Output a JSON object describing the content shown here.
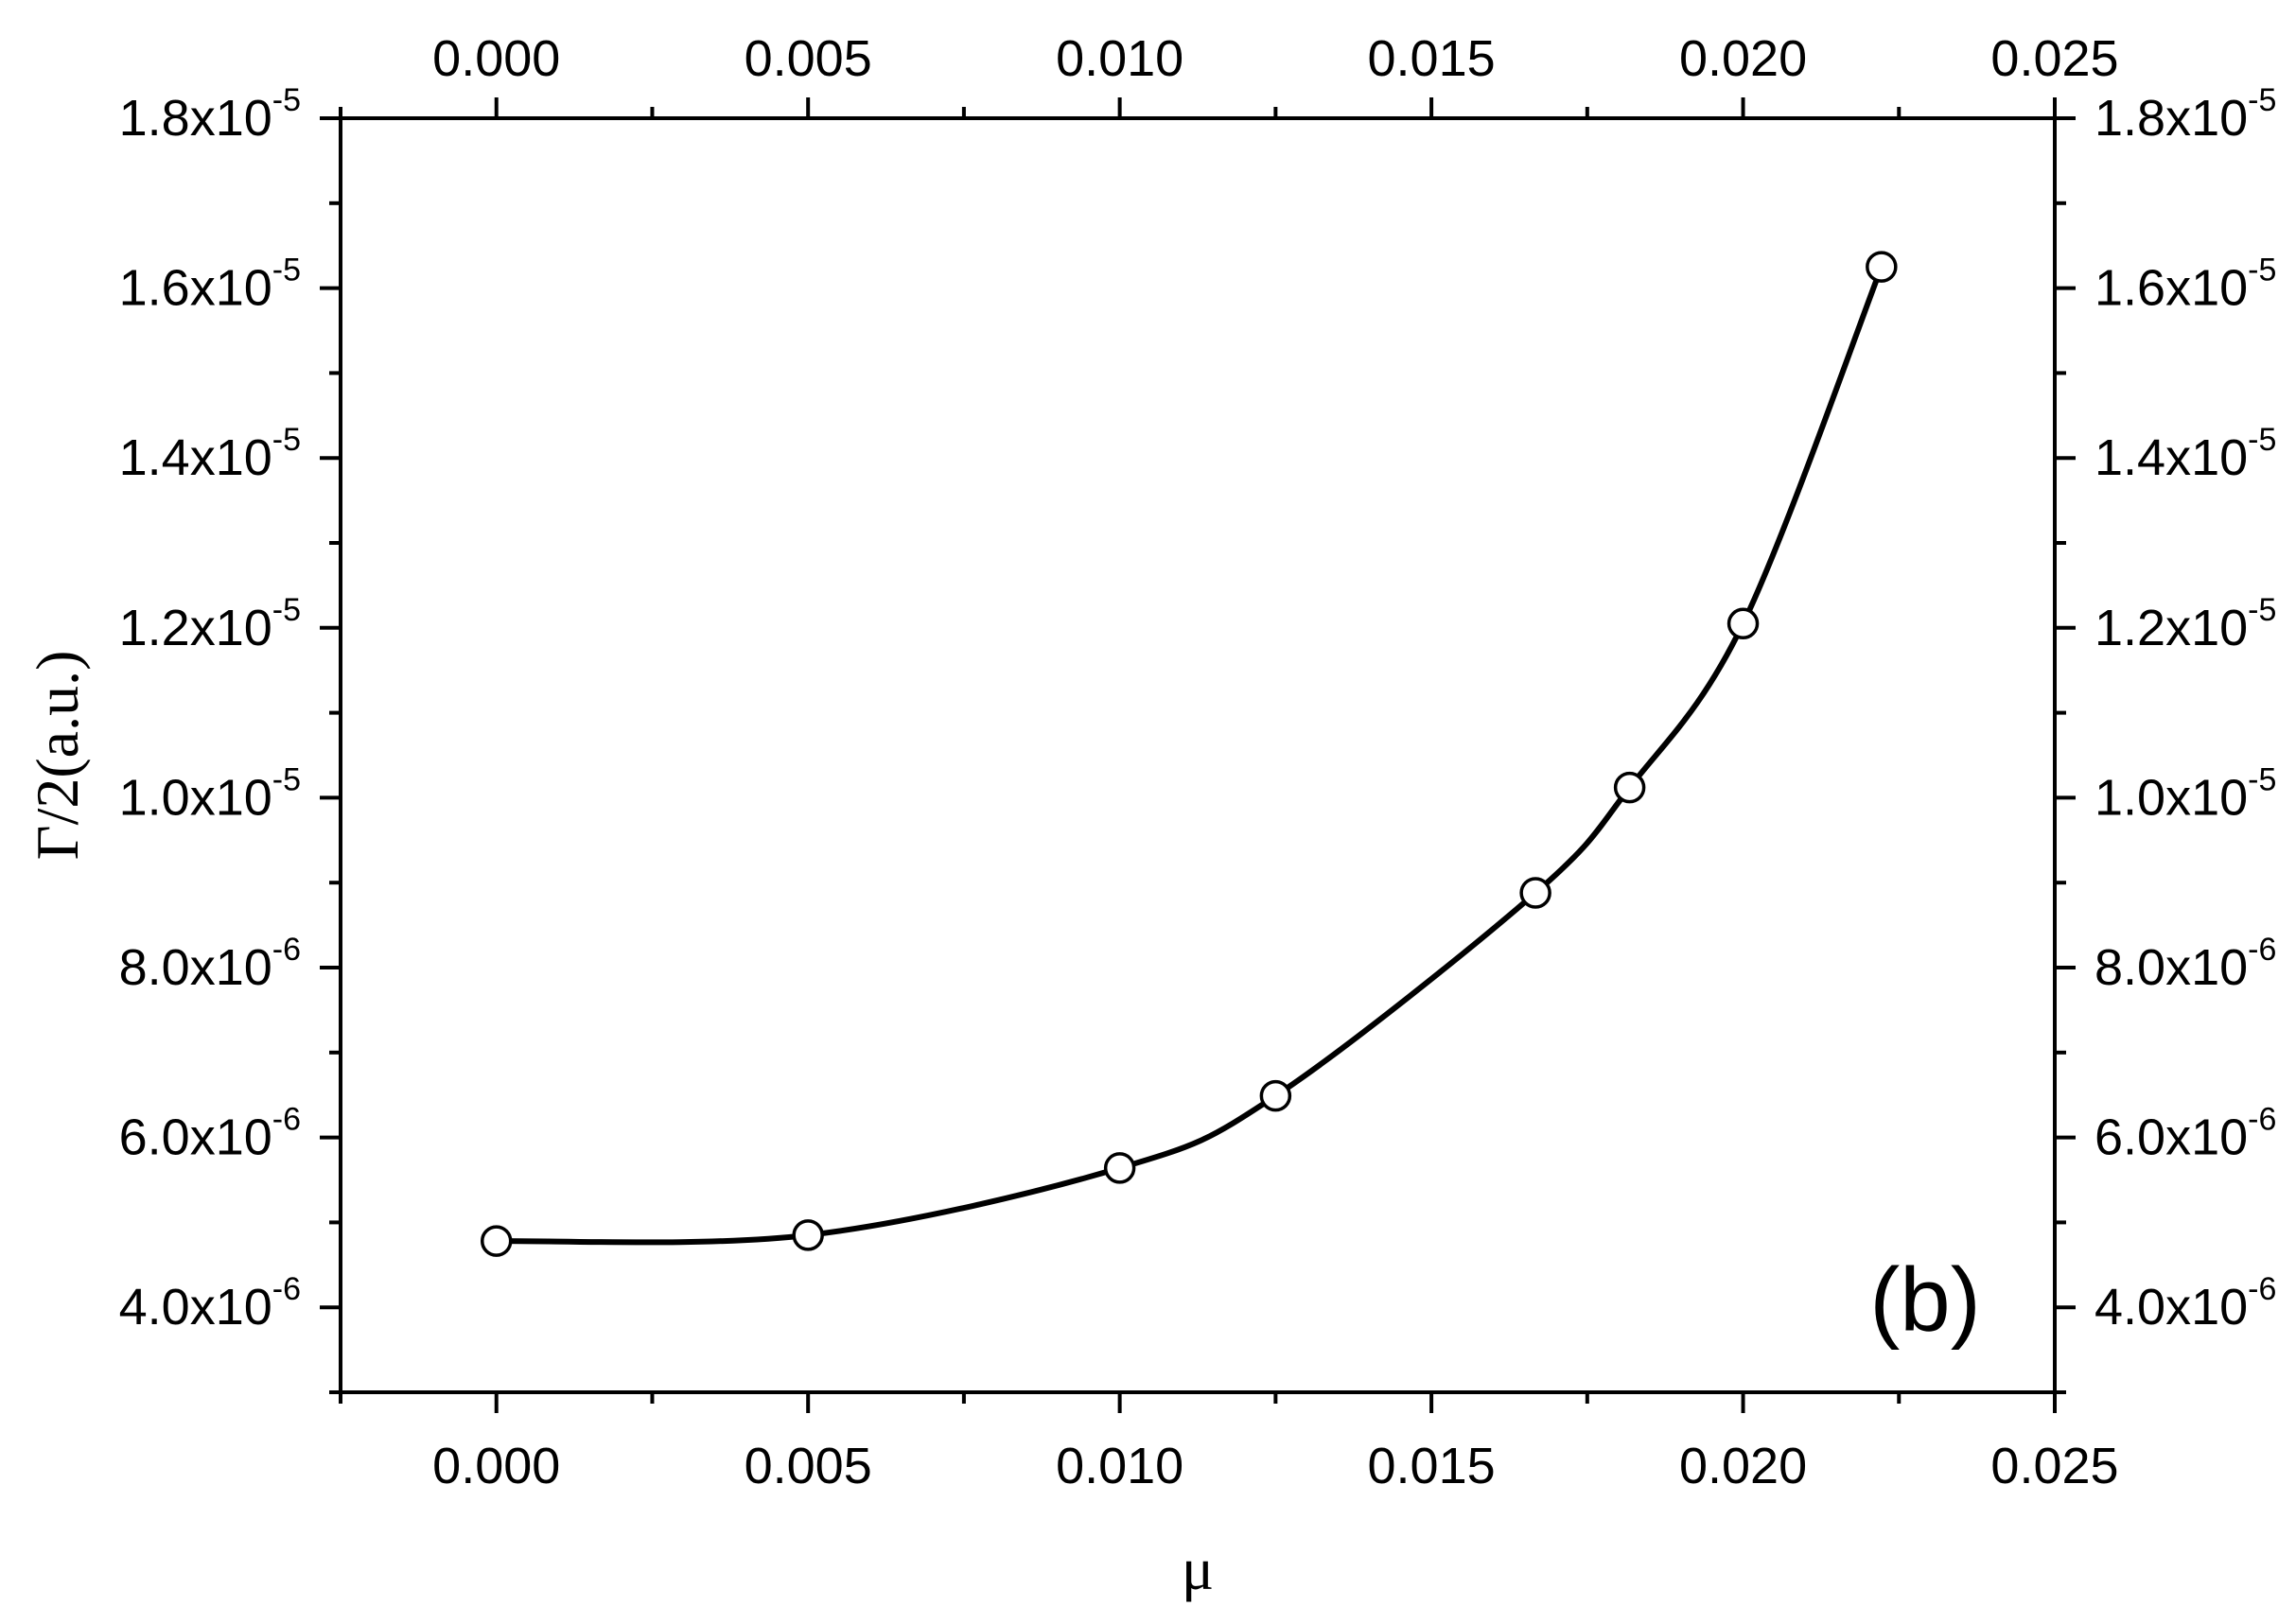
{
  "chart_data": {
    "type": "scatter",
    "panel_label": "(b)",
    "xlabel": "μ",
    "ylabel": "Γ/2(a.u.)",
    "xlim": [
      -0.0025,
      0.025
    ],
    "ylim": [
      3e-06,
      1.8e-05
    ],
    "x_ticks": [
      {
        "value": 0.0,
        "label": "0.000"
      },
      {
        "value": 0.005,
        "label": "0.005"
      },
      {
        "value": 0.01,
        "label": "0.010"
      },
      {
        "value": 0.015,
        "label": "0.015"
      },
      {
        "value": 0.02,
        "label": "0.020"
      },
      {
        "value": 0.025,
        "label": "0.025"
      }
    ],
    "y_ticks": [
      {
        "value": 4e-06,
        "mantissa": "4.0x10",
        "exponent": "-6"
      },
      {
        "value": 6e-06,
        "mantissa": "6.0x10",
        "exponent": "-6"
      },
      {
        "value": 8e-06,
        "mantissa": "8.0x10",
        "exponent": "-6"
      },
      {
        "value": 1e-05,
        "mantissa": "1.0x10",
        "exponent": "-5"
      },
      {
        "value": 1.2e-05,
        "mantissa": "1.2x10",
        "exponent": "-5"
      },
      {
        "value": 1.4e-05,
        "mantissa": "1.4x10",
        "exponent": "-5"
      },
      {
        "value": 1.6e-05,
        "mantissa": "1.6x10",
        "exponent": "-5"
      },
      {
        "value": 1.8e-05,
        "mantissa": "1.8x10",
        "exponent": "-5"
      }
    ],
    "series": [
      {
        "marker": "open-circle",
        "line": "smooth",
        "color": "#000000",
        "points": [
          {
            "x": 0.0,
            "y": 4.78e-06
          },
          {
            "x": 0.005,
            "y": 4.85e-06
          },
          {
            "x": 0.01,
            "y": 5.64e-06
          },
          {
            "x": 0.0125,
            "y": 6.49e-06
          },
          {
            "x": 0.01667,
            "y": 8.88e-06
          },
          {
            "x": 0.01818,
            "y": 1.012e-05
          },
          {
            "x": 0.02,
            "y": 1.205e-05
          },
          {
            "x": 0.02222,
            "y": 1.625e-05
          }
        ]
      }
    ],
    "grid": false,
    "mirrored_axes": true
  }
}
